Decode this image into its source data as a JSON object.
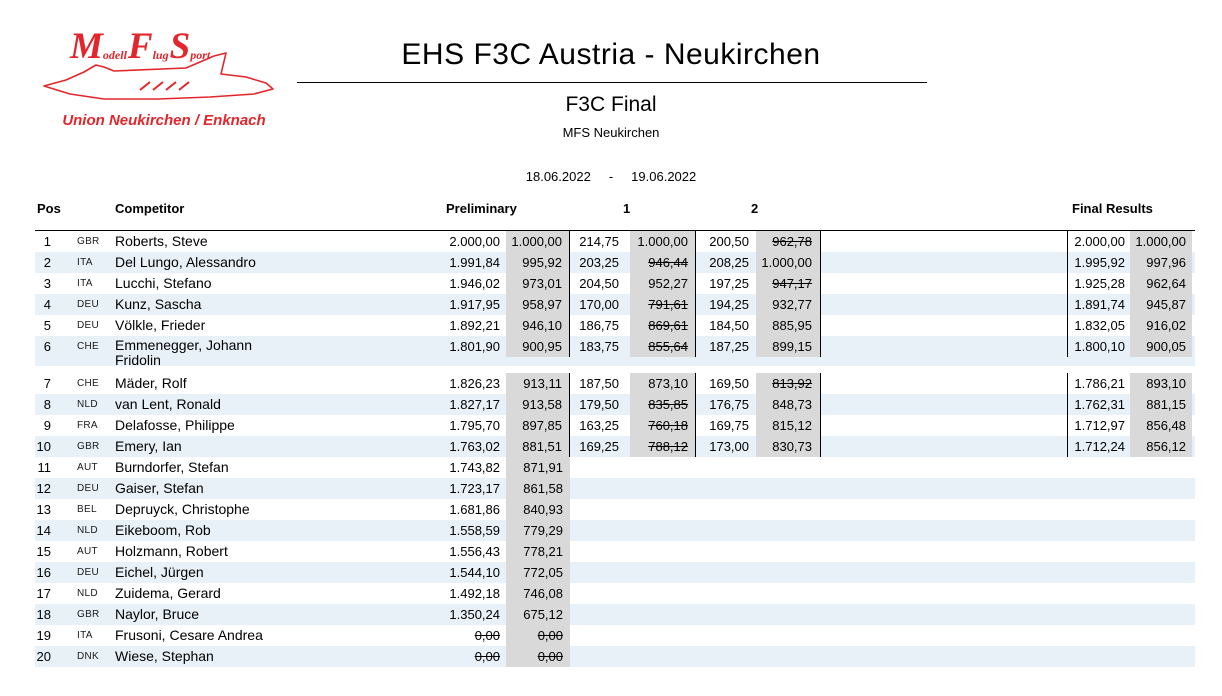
{
  "colors": {
    "accent_red": "#e2262b",
    "row_alt_blue": "#e9f1f8",
    "score_shade_gray": "#d9d9d9",
    "line_black": "#000000"
  },
  "logo": {
    "letters": [
      "M",
      "odell",
      "F",
      "lug",
      "S",
      "port"
    ],
    "subtitle": "Union Neukirchen / Enknach"
  },
  "header": {
    "title": "EHS F3C Austria - Neukirchen",
    "class_title": "F3C Final",
    "organizer": "MFS Neukirchen",
    "date_from": "18.06.2022",
    "date_separator": "-",
    "date_to": "19.06.2022"
  },
  "table": {
    "columns": {
      "pos": "Pos",
      "competitor": "Competitor",
      "preliminary": "Preliminary",
      "round1": "1",
      "round2": "2",
      "final": "Final Results"
    },
    "rows": [
      {
        "pos": "1",
        "country": "GBR",
        "name": "Roberts, Steve",
        "prelim": "2.000,00",
        "prelim_norm": "1.000,00",
        "r1": "214,75",
        "r1_norm": "1.000,00",
        "r1_struck": false,
        "r2": "200,50",
        "r2_norm": "962,78",
        "r2_struck": true,
        "final": "2.000,00",
        "final_norm": "1.000,00"
      },
      {
        "pos": "2",
        "country": "ITA",
        "name": "Del Lungo, Alessandro",
        "prelim": "1.991,84",
        "prelim_norm": "995,92",
        "r1": "203,25",
        "r1_norm": "946,44",
        "r1_struck": true,
        "r2": "208,25",
        "r2_norm": "1.000,00",
        "r2_struck": false,
        "final": "1.995,92",
        "final_norm": "997,96"
      },
      {
        "pos": "3",
        "country": "ITA",
        "name": "Lucchi, Stefano",
        "prelim": "1.946,02",
        "prelim_norm": "973,01",
        "r1": "204,50",
        "r1_norm": "952,27",
        "r1_struck": false,
        "r2": "197,25",
        "r2_norm": "947,17",
        "r2_struck": true,
        "final": "1.925,28",
        "final_norm": "962,64"
      },
      {
        "pos": "4",
        "country": "DEU",
        "name": "Kunz, Sascha",
        "prelim": "1.917,95",
        "prelim_norm": "958,97",
        "r1": "170,00",
        "r1_norm": "791,61",
        "r1_struck": true,
        "r2": "194,25",
        "r2_norm": "932,77",
        "r2_struck": false,
        "final": "1.891,74",
        "final_norm": "945,87"
      },
      {
        "pos": "5",
        "country": "DEU",
        "name": "Völkle, Frieder",
        "prelim": "1.892,21",
        "prelim_norm": "946,10",
        "r1": "186,75",
        "r1_norm": "869,61",
        "r1_struck": true,
        "r2": "184,50",
        "r2_norm": "885,95",
        "r2_struck": false,
        "final": "1.832,05",
        "final_norm": "916,02"
      },
      {
        "pos": "6",
        "country": "CHE",
        "name": "Emmenegger, Johann",
        "name2": "Fridolin",
        "prelim": "1.801,90",
        "prelim_norm": "900,95",
        "r1": "183,75",
        "r1_norm": "855,64",
        "r1_struck": true,
        "r2": "187,25",
        "r2_norm": "899,15",
        "r2_struck": false,
        "final": "1.800,10",
        "final_norm": "900,05",
        "gap_after": true
      },
      {
        "pos": "7",
        "country": "CHE",
        "name": "Mäder, Rolf",
        "prelim": "1.826,23",
        "prelim_norm": "913,11",
        "r1": "187,50",
        "r1_norm": "873,10",
        "r1_struck": false,
        "r2": "169,50",
        "r2_norm": "813,92",
        "r2_struck": true,
        "final": "1.786,21",
        "final_norm": "893,10"
      },
      {
        "pos": "8",
        "country": "NLD",
        "name": "van Lent, Ronald",
        "prelim": "1.827,17",
        "prelim_norm": "913,58",
        "r1": "179,50",
        "r1_norm": "835,85",
        "r1_struck": true,
        "r2": "176,75",
        "r2_norm": "848,73",
        "r2_struck": false,
        "final": "1.762,31",
        "final_norm": "881,15"
      },
      {
        "pos": "9",
        "country": "FRA",
        "name": "Delafosse, Philippe",
        "prelim": "1.795,70",
        "prelim_norm": "897,85",
        "r1": "163,25",
        "r1_norm": "760,18",
        "r1_struck": true,
        "r2": "169,75",
        "r2_norm": "815,12",
        "r2_struck": false,
        "final": "1.712,97",
        "final_norm": "856,48"
      },
      {
        "pos": "10",
        "country": "GBR",
        "name": "Emery, Ian",
        "prelim": "1.763,02",
        "prelim_norm": "881,51",
        "r1": "169,25",
        "r1_norm": "788,12",
        "r1_struck": true,
        "r2": "173,00",
        "r2_norm": "830,73",
        "r2_struck": false,
        "final": "1.712,24",
        "final_norm": "856,12"
      },
      {
        "pos": "11",
        "country": "AUT",
        "name": "Burndorfer, Stefan",
        "prelim": "1.743,82",
        "prelim_norm": "871,91"
      },
      {
        "pos": "12",
        "country": "DEU",
        "name": "Gaiser, Stefan",
        "prelim": "1.723,17",
        "prelim_norm": "861,58"
      },
      {
        "pos": "13",
        "country": "BEL",
        "name": "Depruyck, Christophe",
        "prelim": "1.681,86",
        "prelim_norm": "840,93"
      },
      {
        "pos": "14",
        "country": "NLD",
        "name": "Eikeboom, Rob",
        "prelim": "1.558,59",
        "prelim_norm": "779,29"
      },
      {
        "pos": "15",
        "country": "AUT",
        "name": "Holzmann, Robert",
        "prelim": "1.556,43",
        "prelim_norm": "778,21"
      },
      {
        "pos": "16",
        "country": "DEU",
        "name": "Eichel, Jürgen",
        "prelim": "1.544,10",
        "prelim_norm": "772,05"
      },
      {
        "pos": "17",
        "country": "NLD",
        "name": "Zuidema, Gerard",
        "prelim": "1.492,18",
        "prelim_norm": "746,08"
      },
      {
        "pos": "18",
        "country": "GBR",
        "name": "Naylor, Bruce",
        "prelim": "1.350,24",
        "prelim_norm": "675,12"
      },
      {
        "pos": "19",
        "country": "ITA",
        "name": "Frusoni, Cesare Andrea",
        "prelim": "0,00",
        "prelim_struck": true,
        "prelim_norm": "0,00",
        "prelim_norm_struck": true
      },
      {
        "pos": "20",
        "country": "DNK",
        "name": "Wiese, Stephan",
        "prelim": "0,00",
        "prelim_struck": true,
        "prelim_norm": "0,00",
        "prelim_norm_struck": true
      }
    ]
  }
}
